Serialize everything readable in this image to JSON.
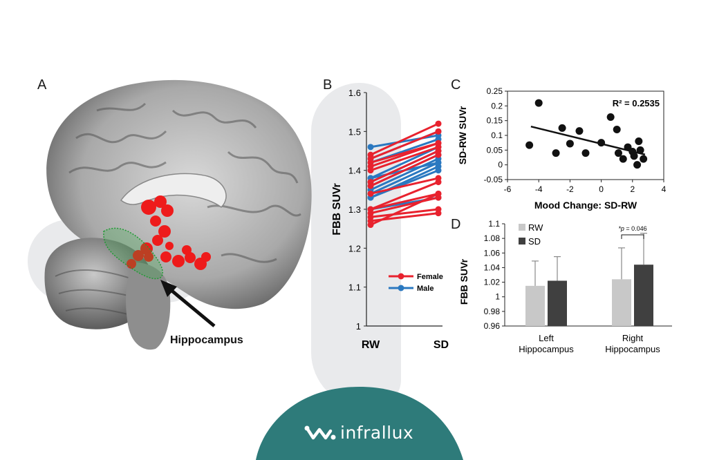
{
  "panels": {
    "a": {
      "letter": "A",
      "brain_label": "Hippocampus"
    },
    "b": {
      "letter": "B"
    },
    "c": {
      "letter": "C"
    },
    "d": {
      "letter": "D"
    }
  },
  "brand": {
    "name": "infrallux",
    "colors": {
      "band": "#2e7b7a",
      "mark": "#ffffff"
    }
  },
  "colors": {
    "female": "#e8222e",
    "male": "#2a78c0",
    "rw_bar": "#c8c8c8",
    "sd_bar": "#404040"
  },
  "chart_data": [
    {
      "id": "B",
      "type": "line",
      "ylabel": "FBB SUVr",
      "categories": [
        "RW",
        "SD"
      ],
      "ylim": [
        1.0,
        1.6
      ],
      "yticks": [
        "1",
        "1.1",
        "1.2",
        "1.3",
        "1.4",
        "1.5",
        "1.6"
      ],
      "legend": [
        "Female",
        "Male"
      ],
      "legend_position": "bottom-right",
      "series": [
        {
          "name": "Female",
          "pairs": [
            [
              1.44,
              1.52
            ],
            [
              1.43,
              1.5
            ],
            [
              1.41,
              1.47
            ],
            [
              1.4,
              1.46
            ],
            [
              1.37,
              1.45
            ],
            [
              1.36,
              1.44
            ],
            [
              1.34,
              1.38
            ],
            [
              1.3,
              1.37
            ],
            [
              1.3,
              1.34
            ],
            [
              1.29,
              1.33
            ],
            [
              1.28,
              1.3
            ],
            [
              1.27,
              1.29
            ],
            [
              1.26,
              1.34
            ],
            [
              1.42,
              1.47
            ]
          ]
        },
        {
          "name": "Male",
          "pairs": [
            [
              1.46,
              1.49
            ],
            [
              1.43,
              1.5
            ],
            [
              1.42,
              1.48
            ],
            [
              1.38,
              1.46
            ],
            [
              1.37,
              1.45
            ],
            [
              1.36,
              1.44
            ],
            [
              1.35,
              1.43
            ],
            [
              1.34,
              1.42
            ],
            [
              1.33,
              1.41
            ],
            [
              1.33,
              1.4
            ],
            [
              1.3,
              1.33
            ],
            [
              1.38,
              1.42
            ]
          ]
        }
      ]
    },
    {
      "id": "C",
      "type": "scatter",
      "xlabel": "Mood Change: SD-RW",
      "ylabel": "SD-RW SUVr",
      "xlim": [
        -6,
        4
      ],
      "ylim": [
        -0.05,
        0.25
      ],
      "xticks": [
        "-6",
        "-4",
        "-2",
        "0",
        "2",
        "4"
      ],
      "yticks": [
        "-0.05",
        "0",
        "0.05",
        "0.1",
        "0.15",
        "0.2",
        "0.25"
      ],
      "annotation": "R² = 0.2535",
      "trendline": {
        "x": [
          -4.5,
          2.8
        ],
        "y": [
          0.13,
          0.035
        ]
      },
      "points": [
        [
          -4.6,
          0.067
        ],
        [
          -4.0,
          0.21
        ],
        [
          -2.9,
          0.04
        ],
        [
          -2.5,
          0.125
        ],
        [
          -2.0,
          0.072
        ],
        [
          -1.4,
          0.115
        ],
        [
          -1.0,
          0.04
        ],
        [
          0.0,
          0.075
        ],
        [
          0.6,
          0.162
        ],
        [
          1.0,
          0.12
        ],
        [
          1.1,
          0.04
        ],
        [
          1.4,
          0.02
        ],
        [
          1.7,
          0.06
        ],
        [
          2.0,
          0.045
        ],
        [
          2.1,
          0.03
        ],
        [
          2.3,
          0.0
        ],
        [
          2.4,
          0.08
        ],
        [
          2.5,
          0.05
        ],
        [
          2.7,
          0.02
        ]
      ]
    },
    {
      "id": "D",
      "type": "bar",
      "ylabel": "FBB SUVr",
      "categories": [
        "Left Hippocampus",
        "Right Hippocampus"
      ],
      "category_lines": [
        [
          "Left",
          "Hippocampus"
        ],
        [
          "Right",
          "Hippocampus"
        ]
      ],
      "ylim": [
        0.96,
        1.1
      ],
      "yticks": [
        "0.96",
        "0.98",
        "1",
        "1.02",
        "1.04",
        "1.06",
        "1.08",
        "1.1"
      ],
      "legend": [
        "RW",
        "SD"
      ],
      "legend_position": "top-left",
      "series": [
        {
          "name": "RW",
          "values": [
            1.015,
            1.024
          ],
          "errors": [
            0.034,
            0.043
          ]
        },
        {
          "name": "SD",
          "values": [
            1.022,
            1.044
          ],
          "errors": [
            0.033,
            0.043
          ]
        }
      ],
      "annotation": {
        "star": "*",
        "p_label": "p = 0.046"
      }
    }
  ]
}
